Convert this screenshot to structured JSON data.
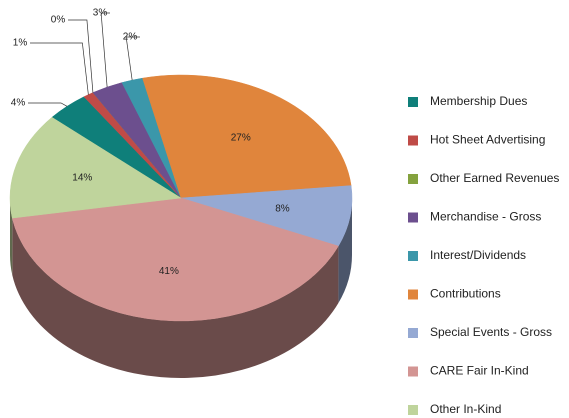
{
  "chart_data": {
    "type": "pie3d",
    "categories": [
      "Membership Dues",
      "Hot Sheet Advertising",
      "Other Earned Revenues",
      "Merchandise - Gross",
      "Interest/Dividends",
      "Contributions",
      "Special Events - Gross",
      "CARE Fair In-Kind",
      "Other In-Kind"
    ],
    "values": [
      4,
      1,
      0,
      3,
      2,
      27,
      8,
      41,
      14
    ],
    "value_labels": [
      "4%",
      "1%",
      "0%",
      "3%",
      "2%",
      "27%",
      "8%",
      "41%",
      "14%"
    ],
    "colors": [
      "#0f7f7a",
      "#bf4b47",
      "#84a23e",
      "#6c4f8e",
      "#3b97aa",
      "#e0853c",
      "#95a9d3",
      "#d39593",
      "#bfd49c"
    ],
    "legend": "right"
  }
}
